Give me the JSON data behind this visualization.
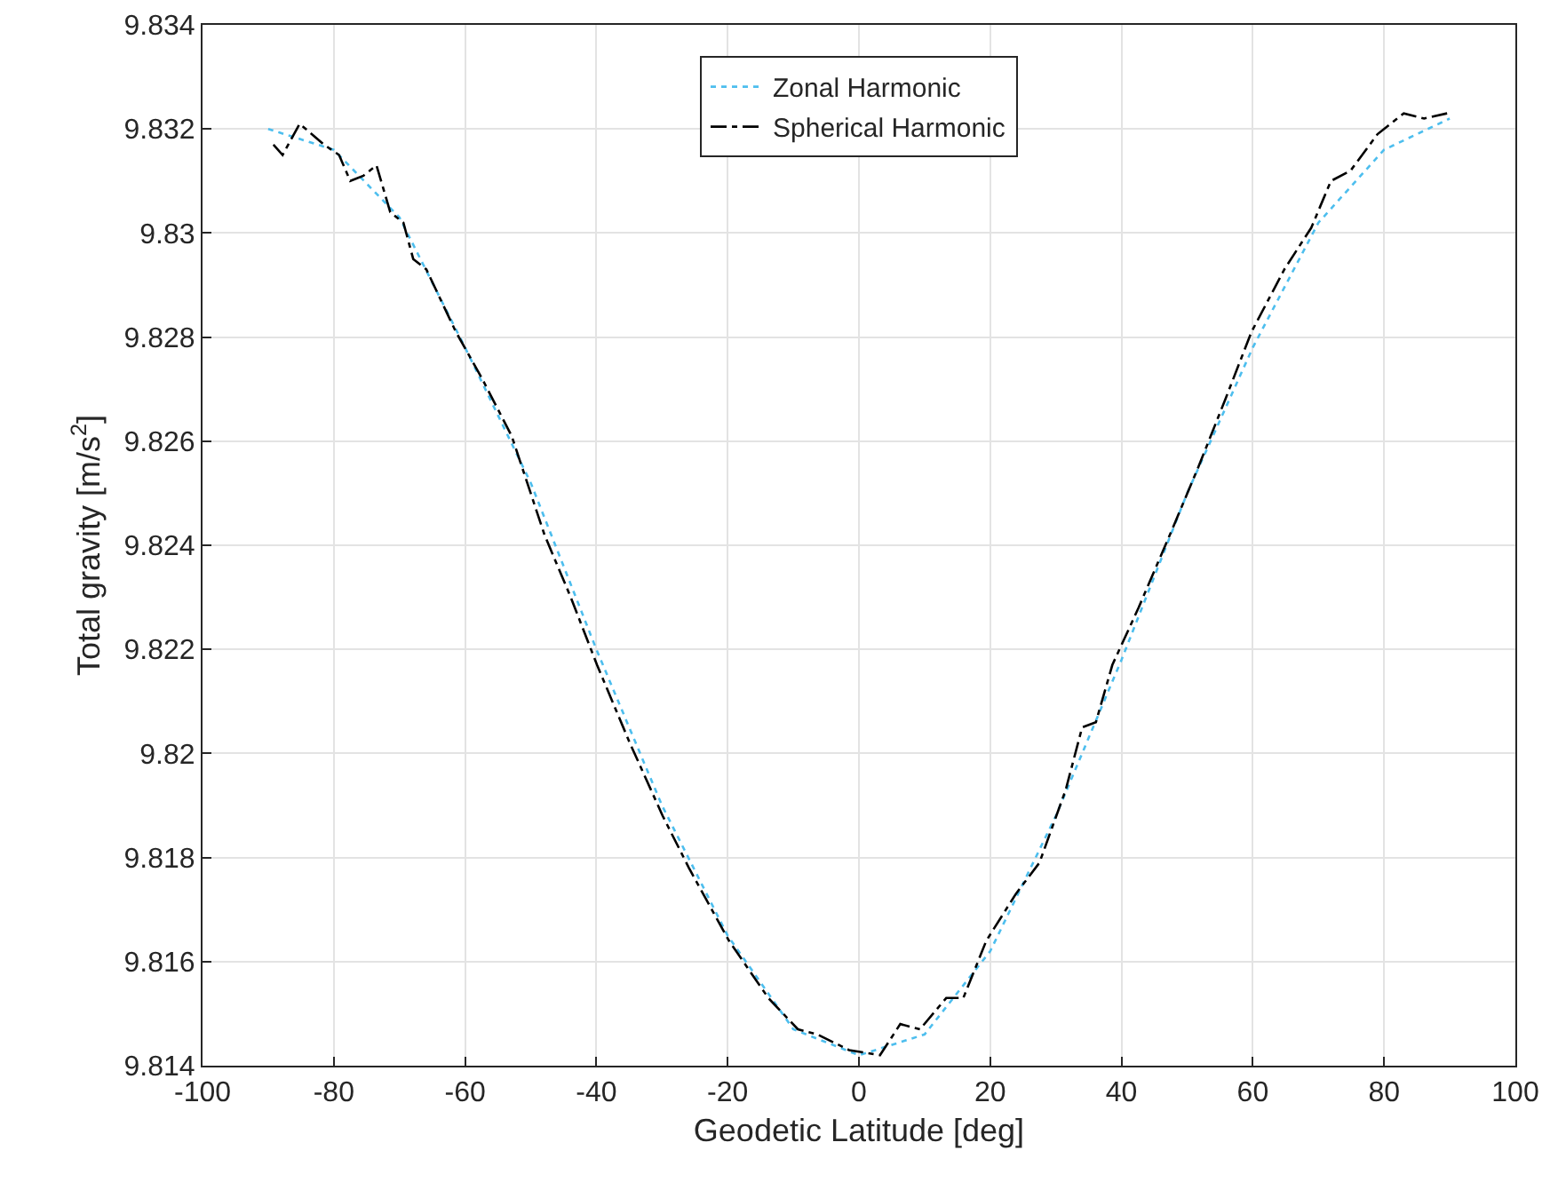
{
  "chart_data": {
    "type": "line",
    "xlabel": "Geodetic Latitude [deg]",
    "ylabel": "Total gravity [m/s$^{2}$]",
    "xlim": [
      -100,
      100
    ],
    "xticks": [
      -100,
      -80,
      -60,
      -40,
      -20,
      0,
      20,
      40,
      60,
      80,
      100
    ],
    "ylim": [
      9.814,
      9.834
    ],
    "yticks": [
      9.814,
      9.816,
      9.818,
      9.82,
      9.822,
      9.824,
      9.826,
      9.828,
      9.83,
      9.832,
      9.834
    ],
    "grid": true,
    "legend": "top",
    "series": [
      {
        "name": "Zonal Harmonic",
        "color": "#4dbeee",
        "line_style": "dotted",
        "x": [
          -90,
          -80,
          -70,
          -60,
          -50,
          -40,
          -30,
          -20,
          -10,
          0,
          10,
          20,
          30,
          40,
          50,
          60,
          70,
          80,
          90
        ],
        "values": [
          9.832,
          9.8316,
          9.8303,
          9.8278,
          9.8252,
          9.822,
          9.819,
          9.8165,
          9.8147,
          9.8142,
          9.8146,
          9.8162,
          9.8188,
          9.8218,
          9.825,
          9.8278,
          9.8302,
          9.8316,
          9.8322
        ]
      },
      {
        "name": "Spherical Harmonic",
        "color": "#000000",
        "line_style": "dashdot",
        "x": [
          -89.2,
          -87.8,
          -85.2,
          -81.5,
          -79.2,
          -77.5,
          -75.5,
          -73.5,
          -71.4,
          -69.4,
          -67.9,
          -65.9,
          -61.4,
          -57.4,
          -52.9,
          -47.9,
          -43.9,
          -39.9,
          -34.9,
          -29.9,
          -25.9,
          -19.8,
          -13.8,
          -9.3,
          -6.3,
          -1.5,
          3.2,
          6.3,
          9.3,
          13.3,
          15.9,
          19.4,
          23.9,
          27.5,
          31.5,
          34,
          36.1,
          38.6,
          42.6,
          47.7,
          51.7,
          55.8,
          59.8,
          64.8,
          68.9,
          71.9,
          74.9,
          79,
          83,
          86.1,
          89.6
        ],
        "values": [
          9.8317,
          9.8315,
          9.8321,
          9.8317,
          9.8315,
          9.831,
          9.8311,
          9.8313,
          9.8304,
          9.8302,
          9.8295,
          9.8293,
          9.8281,
          9.8272,
          9.8261,
          9.8242,
          9.823,
          9.8217,
          9.8202,
          9.8188,
          9.8178,
          9.8164,
          9.8153,
          9.8147,
          9.8146,
          9.8143,
          9.8142,
          9.8148,
          9.8147,
          9.8153,
          9.8153,
          9.8164,
          9.8173,
          9.8179,
          9.8193,
          9.8205,
          9.8206,
          9.8217,
          9.8228,
          9.8243,
          9.8255,
          9.8268,
          9.8281,
          9.8293,
          9.8301,
          9.831,
          9.8312,
          9.8319,
          9.8323,
          9.8322,
          9.8323
        ]
      }
    ]
  }
}
